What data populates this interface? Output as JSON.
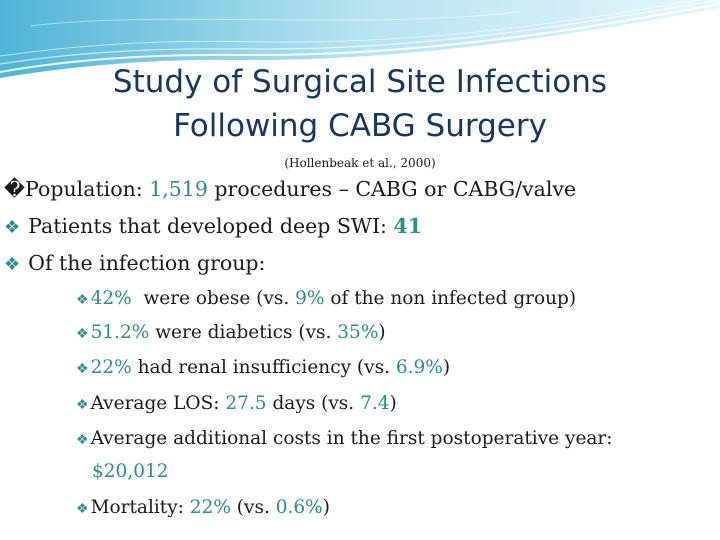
{
  "slide": {
    "title_line1": "Study of Surgical Site Infections",
    "title_line2": "Following CABG Surgery",
    "citation": "(Hollenbeak et al., 2000)",
    "colors": {
      "title": "#17375e",
      "accent": "#2e8b8b",
      "text": "#1a1a1a",
      "wave": "#8fd3e8"
    },
    "bullet_icon": "diamond-bullet-icon",
    "level1": {
      "b1": {
        "glyph": "�",
        "text_a": "Population: ",
        "value": "1,519",
        "text_b": " procedures – CABG or CABG/valve"
      },
      "b2": {
        "bullet": "❖",
        "text_a": "Patients that developed deep SWI: ",
        "value": "41"
      },
      "b3": {
        "bullet": "❖",
        "text_a": "Of the infection group:"
      }
    },
    "level2": {
      "s1": {
        "bullet": "❖",
        "value_a": "42%",
        "text_a": "  were obese (vs. ",
        "value_b": "9%",
        "text_b": " of the non infected group)"
      },
      "s2": {
        "bullet": "❖",
        "value_a": "51.2%",
        "text_a": " were diabetics (vs. ",
        "value_b": "35%",
        "text_b": ")"
      },
      "s3": {
        "bullet": "❖",
        "value_a": "22%",
        "text_a": " had renal insufficiency (vs. ",
        "value_b": "6.9%",
        "text_b": ")"
      },
      "s4": {
        "bullet": "❖",
        "text_a": "Average LOS: ",
        "value_a": "27.5",
        "text_b": " days (vs. ",
        "value_b": "7.4",
        "text_c": ")"
      },
      "s5": {
        "bullet": "❖",
        "text_a": "Average additional costs in the first postoperative year:",
        "value_a": "$20,012"
      },
      "s6": {
        "bullet": "❖",
        "text_a": "Mortality: ",
        "value_a": "22%",
        "text_b": " (vs. ",
        "value_b": "0.6%",
        "text_c": ")"
      }
    }
  }
}
